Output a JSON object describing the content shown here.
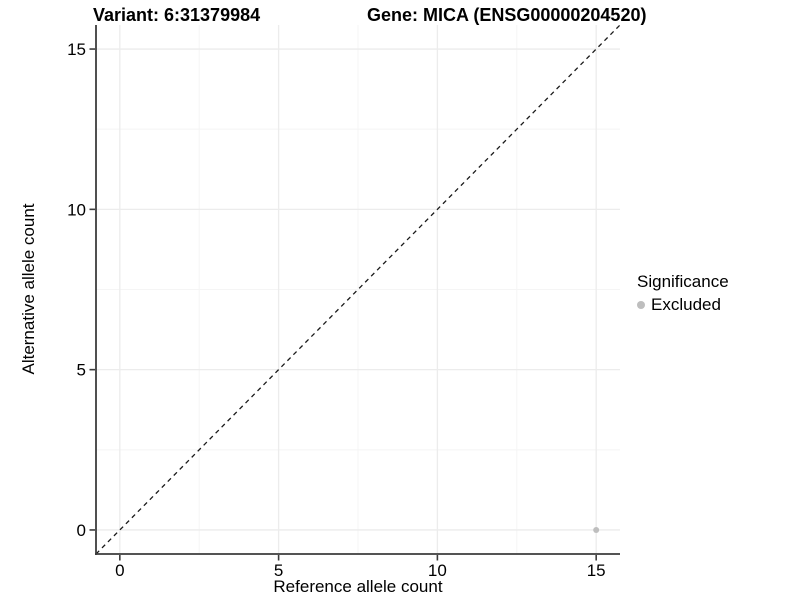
{
  "header": {
    "variant_title": "Variant: 6:31379984",
    "gene_title": "Gene: MICA (ENSG00000204520)"
  },
  "colors": {
    "background": "#ffffff",
    "grid_major": "#ececec",
    "grid_minor": "#f5f5f5",
    "axis_line": "#3c3c3c",
    "tick_mark": "#3c3c3c",
    "reference_line": "#1a1a1a",
    "point": "#bebebe",
    "text": "#000000"
  },
  "chart_data": {
    "type": "scatter",
    "variant_title": "Variant: 6:31379984",
    "gene_title": "Gene: MICA (ENSG00000204520)",
    "xlabel": "Reference allele count",
    "ylabel": "Alternative allele count",
    "xlim": [
      -0.75,
      15.75
    ],
    "ylim": [
      -0.75,
      15.75
    ],
    "x_ticks": [
      0,
      5,
      10,
      15
    ],
    "y_ticks": [
      0,
      5,
      10,
      15
    ],
    "x_tick_labels": [
      "0",
      "5",
      "10",
      "15"
    ],
    "y_tick_labels": [
      "0",
      "5",
      "10",
      "15"
    ],
    "x_minor_ticks": [
      2.5,
      7.5,
      12.5
    ],
    "y_minor_ticks": [
      2.5,
      7.5,
      12.5
    ],
    "grid": true,
    "legend_position": "right",
    "legend": {
      "title": "Significance",
      "items": [
        {
          "label": "Excluded",
          "color": "#bebebe"
        }
      ]
    },
    "series": [
      {
        "name": "Excluded",
        "color": "#bebebe",
        "point_radius": 3,
        "points": [
          [
            15,
            0
          ]
        ]
      }
    ],
    "reference_line": {
      "kind": "identity y=x",
      "style": "dashed",
      "color": "#1a1a1a",
      "x": [
        -0.75,
        15.75
      ],
      "y": [
        -0.75,
        15.75
      ]
    }
  }
}
